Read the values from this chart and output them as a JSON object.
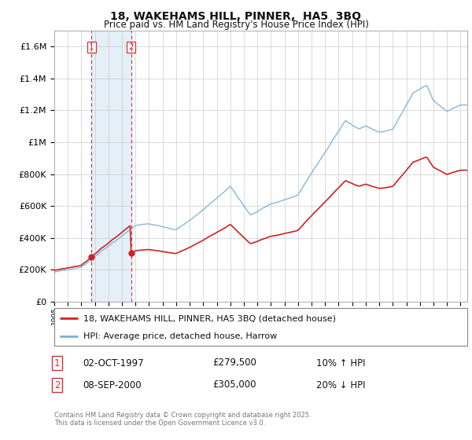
{
  "title": "18, WAKEHAMS HILL, PINNER,  HA5  3BQ",
  "subtitle": "Price paid vs. HM Land Registry's House Price Index (HPI)",
  "ylabel_ticks": [
    "£0",
    "£200K",
    "£400K",
    "£600K",
    "£800K",
    "£1M",
    "£1.2M",
    "£1.4M",
    "£1.6M"
  ],
  "ytick_values": [
    0,
    200000,
    400000,
    600000,
    800000,
    1000000,
    1200000,
    1400000,
    1600000
  ],
  "ylim": [
    0,
    1700000
  ],
  "xlim_start": 1995.3,
  "xlim_end": 2025.5,
  "xticks": [
    1995,
    1996,
    1997,
    1998,
    1999,
    2000,
    2001,
    2002,
    2003,
    2004,
    2005,
    2006,
    2007,
    2008,
    2009,
    2010,
    2011,
    2012,
    2013,
    2014,
    2015,
    2016,
    2017,
    2018,
    2019,
    2020,
    2021,
    2022,
    2023,
    2024,
    2025
  ],
  "hpi_color": "#7ab0d8",
  "price_color": "#cc2222",
  "dot_color": "#cc2222",
  "vline_color": "#cc3333",
  "grid_color": "#cccccc",
  "bg_color": "#ffffff",
  "plot_bg_color": "#ffffff",
  "purchase1_x": 1997.75,
  "purchase1_y": 279500,
  "purchase2_x": 2000.67,
  "purchase2_y": 305000,
  "legend_line1": "18, WAKEHAMS HILL, PINNER, HA5 3BQ (detached house)",
  "legend_line2": "HPI: Average price, detached house, Harrow",
  "table_row1_num": "1",
  "table_row1_date": "02-OCT-1997",
  "table_row1_price": "£279,500",
  "table_row1_hpi": "10% ↑ HPI",
  "table_row2_num": "2",
  "table_row2_date": "08-SEP-2000",
  "table_row2_price": "£305,000",
  "table_row2_hpi": "20% ↓ HPI",
  "footer": "Contains HM Land Registry data © Crown copyright and database right 2025.\nThis data is licensed under the Open Government Licence v3.0."
}
